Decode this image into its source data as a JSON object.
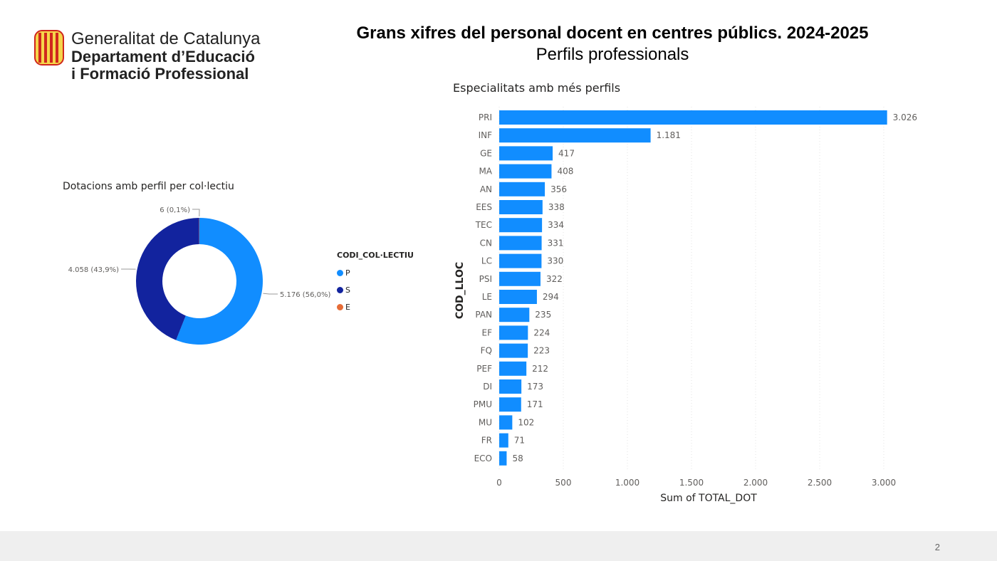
{
  "header": {
    "logo_line1": "Generalitat de Catalunya",
    "logo_line2": "Departament d’Educació",
    "logo_line3": "i Formació Professional",
    "title": "Grans xifres del personal docent en centres públics. 2024-2025",
    "subtitle": "Perfils professionals"
  },
  "colors": {
    "P": "#118DFF",
    "S": "#12239E",
    "E": "#E66C37",
    "bar": "#118DFF",
    "logo_red": "#D0271D",
    "logo_gold": "#F5D54A"
  },
  "chart_data": [
    {
      "type": "pie",
      "title": "Dotacions amb perfil per col·lectiu",
      "legend_title": "CODI_COL·LECTIU",
      "legend_position": "right",
      "slices": [
        {
          "name": "P",
          "value": 5176,
          "label": "5.176 (56,0%)"
        },
        {
          "name": "S",
          "value": 4058,
          "label": "4.058 (43,9%)"
        },
        {
          "name": "E",
          "value": 6,
          "label": "6 (0,1%)"
        }
      ]
    },
    {
      "type": "bar",
      "orientation": "horizontal",
      "title": "Especialitats amb més perfils",
      "xlabel": "Sum of TOTAL_DOT",
      "ylabel": "COD_LLOC",
      "xlim": [
        0,
        3000
      ],
      "xticks": [
        {
          "value": 0,
          "label": "0"
        },
        {
          "value": 500,
          "label": "500"
        },
        {
          "value": 1000,
          "label": "1.000"
        },
        {
          "value": 1500,
          "label": "1.500"
        },
        {
          "value": 2000,
          "label": "2.000"
        },
        {
          "value": 2500,
          "label": "2.500"
        },
        {
          "value": 3000,
          "label": "3.000"
        }
      ],
      "grid": true,
      "categories": [
        "PRI",
        "INF",
        "GE",
        "MA",
        "AN",
        "EES",
        "TEC",
        "CN",
        "LC",
        "PSI",
        "LE",
        "PAN",
        "EF",
        "FQ",
        "PEF",
        "DI",
        "PMU",
        "MU",
        "FR",
        "ECO"
      ],
      "values": [
        3026,
        1181,
        417,
        408,
        356,
        338,
        334,
        331,
        330,
        322,
        294,
        235,
        224,
        223,
        212,
        173,
        171,
        102,
        71,
        58
      ],
      "value_labels": [
        "3.026",
        "1.181",
        "417",
        "408",
        "356",
        "338",
        "334",
        "331",
        "330",
        "322",
        "294",
        "235",
        "224",
        "223",
        "212",
        "173",
        "171",
        "102",
        "71",
        "58"
      ]
    }
  ],
  "footer": {
    "page_number": "2"
  }
}
